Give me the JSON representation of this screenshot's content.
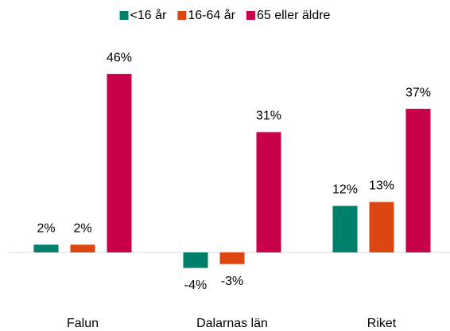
{
  "chart_data": {
    "type": "bar",
    "categories": [
      "Falun",
      "Dalarnas län",
      "Riket"
    ],
    "series": [
      {
        "name": "<16 år",
        "color": "#00806a",
        "values": [
          2,
          -4,
          12
        ],
        "value_labels": [
          "2%",
          "-4%",
          "12%"
        ]
      },
      {
        "name": "16-64 år",
        "color": "#dc4711",
        "values": [
          2,
          -3,
          13
        ],
        "value_labels": [
          "2%",
          "-3%",
          "13%"
        ]
      },
      {
        "name": "65 eller äldre",
        "color": "#c8004a",
        "values": [
          46,
          31,
          37
        ],
        "value_labels": [
          "46%",
          "31%",
          "37%"
        ]
      }
    ],
    "ylim": [
      -12,
      50
    ],
    "legend": "top"
  }
}
